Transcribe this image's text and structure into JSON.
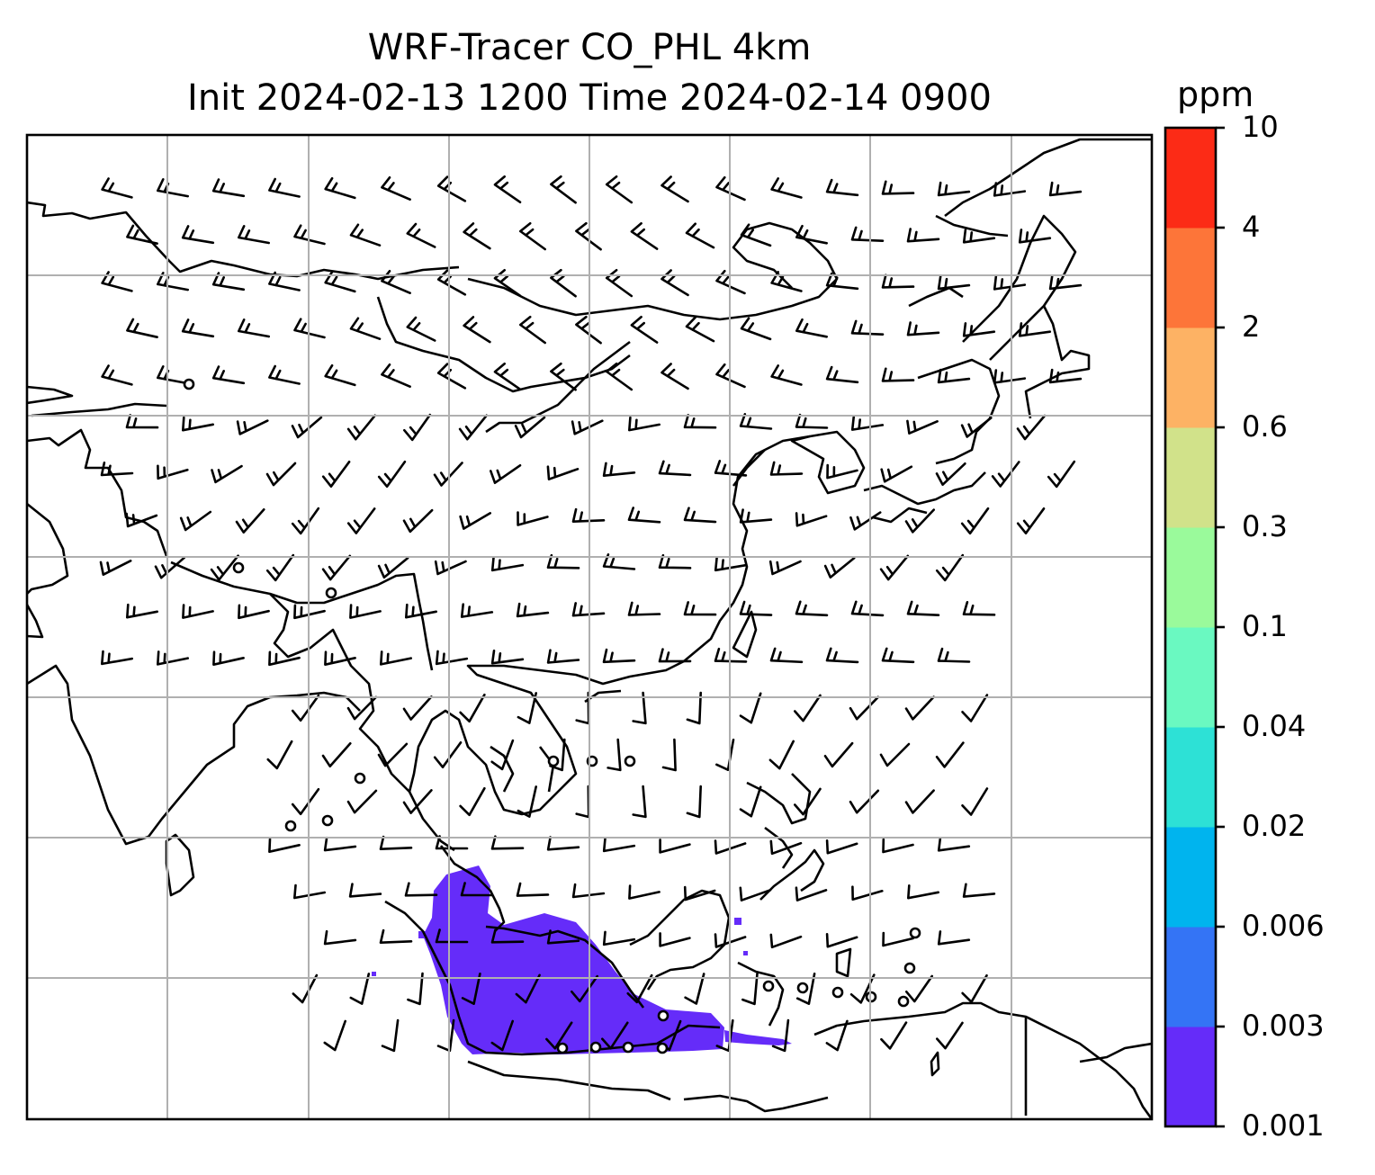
{
  "title": {
    "line1": "WRF-Tracer CO_PHL 4km",
    "line2": "Init 2024-02-13 1200 Time 2024-02-14 0900"
  },
  "colorbar": {
    "unit": "ppm",
    "levels": [
      "0.001",
      "0.003",
      "0.006",
      "0.02",
      "0.04",
      "0.1",
      "0.3",
      "0.6",
      "2",
      "4",
      "10"
    ],
    "colors": [
      "#652cf9",
      "#3474f5",
      "#00b4ee",
      "#2de1d6",
      "#6af9c1",
      "#9afa9b",
      "#d1e28a",
      "#fdb264",
      "#fd7539",
      "#fc2b16"
    ]
  },
  "map": {
    "tracer_color": "#652cf9",
    "grid_color": "#b0b0b0",
    "coast_color": "#000000"
  }
}
